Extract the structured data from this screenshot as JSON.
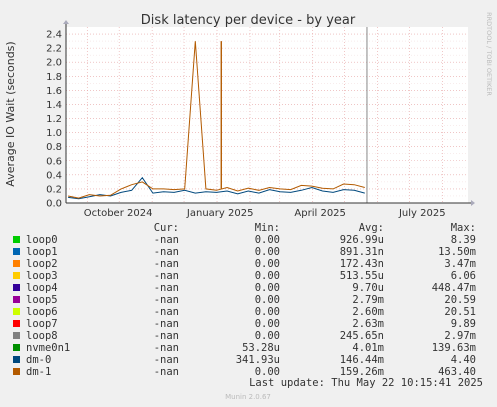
{
  "chart_data": {
    "type": "line",
    "title": "Disk latency per device - by year",
    "ylabel": "Average IO Wait (seconds)",
    "side_label": "RRDTOOL / TOBI OETIKER",
    "x_ticks": [
      "October 2024",
      "January 2025",
      "April 2025",
      "July 2025"
    ],
    "y_ticks": [
      "0.0",
      "0.2",
      "0.4",
      "0.6",
      "0.8",
      "1.0",
      "1.2",
      "1.4",
      "1.6",
      "1.8",
      "2.0",
      "2.2",
      "2.4"
    ],
    "ylim": [
      0,
      2.5
    ],
    "x_range": [
      "2024-08-12",
      "2025-08-25"
    ],
    "grid": true,
    "spike": {
      "date": "2025-01-05",
      "value": 2.3,
      "series": "dm-1"
    },
    "now_marker_date": "2025-05-22",
    "series_values": [
      {
        "name": "dm-0",
        "values": [
          0.08,
          0.06,
          0.09,
          0.12,
          0.1,
          0.15,
          0.18,
          0.36,
          0.14,
          0.16,
          0.15,
          0.18,
          0.14,
          0.16,
          0.15,
          0.17,
          0.13,
          0.17,
          0.14,
          0.19,
          0.16,
          0.15,
          0.18,
          0.22,
          0.17,
          0.15,
          0.19,
          0.18,
          0.14
        ]
      },
      {
        "name": "dm-1",
        "values": [
          0.1,
          0.07,
          0.12,
          0.1,
          0.11,
          0.2,
          0.26,
          0.3,
          0.2,
          0.2,
          0.19,
          0.2,
          2.3,
          0.2,
          0.18,
          0.22,
          0.17,
          0.21,
          0.18,
          0.22,
          0.2,
          0.19,
          0.25,
          0.24,
          0.21,
          0.2,
          0.27,
          0.26,
          0.22
        ]
      }
    ],
    "legend_header": {
      "cur": "Cur:",
      "min": "Min:",
      "avg": "Avg:",
      "max": "Max:"
    },
    "legend": [
      {
        "name": "loop0",
        "color": "#00cc00",
        "cur": "-nan",
        "min": "0.00",
        "avg": "926.99u",
        "max": "8.39"
      },
      {
        "name": "loop1",
        "color": "#0066b3",
        "cur": "-nan",
        "min": "0.00",
        "avg": "891.31n",
        "max": "13.50m"
      },
      {
        "name": "loop2",
        "color": "#ff8000",
        "cur": "-nan",
        "min": "0.00",
        "avg": "172.43n",
        "max": "3.47m"
      },
      {
        "name": "loop3",
        "color": "#ffcc00",
        "cur": "-nan",
        "min": "0.00",
        "avg": "513.55u",
        "max": "6.06"
      },
      {
        "name": "loop4",
        "color": "#330099",
        "cur": "-nan",
        "min": "0.00",
        "avg": "9.70u",
        "max": "448.47m"
      },
      {
        "name": "loop5",
        "color": "#990099",
        "cur": "-nan",
        "min": "0.00",
        "avg": "2.79m",
        "max": "20.59"
      },
      {
        "name": "loop6",
        "color": "#ccff00",
        "cur": "-nan",
        "min": "0.00",
        "avg": "2.60m",
        "max": "20.51"
      },
      {
        "name": "loop7",
        "color": "#ff0000",
        "cur": "-nan",
        "min": "0.00",
        "avg": "2.63m",
        "max": "9.89"
      },
      {
        "name": "loop8",
        "color": "#808080",
        "cur": "-nan",
        "min": "0.00",
        "avg": "245.65n",
        "max": "2.97m"
      },
      {
        "name": "nvme0n1",
        "color": "#008f00",
        "cur": "-nan",
        "min": "53.28u",
        "avg": "4.01m",
        "max": "139.63m"
      },
      {
        "name": "dm-0",
        "color": "#00487d",
        "cur": "-nan",
        "min": "341.93u",
        "avg": "146.44m",
        "max": "4.40"
      },
      {
        "name": "dm-1",
        "color": "#b35a00",
        "cur": "-nan",
        "min": "0.00",
        "avg": "159.26m",
        "max": "463.40"
      }
    ],
    "last_update": "Last update: Thu May 22 10:15:41 2025",
    "footer": "Munin 2.0.67"
  }
}
